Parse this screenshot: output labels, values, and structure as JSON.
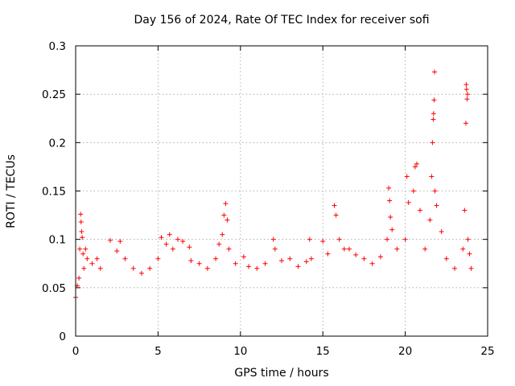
{
  "chart_data": {
    "type": "scatter",
    "title": "Day 156 of 2024, Rate Of TEC Index for receiver sofi",
    "xlabel": "GPS time / hours",
    "ylabel": "ROTI / TECUs",
    "xlim": [
      0,
      25
    ],
    "ylim": [
      0,
      0.3
    ],
    "x_ticks": [
      0,
      5,
      10,
      15,
      20,
      25
    ],
    "x_tick_labels": [
      "0",
      "5",
      "10",
      "15",
      "20",
      "25"
    ],
    "y_ticks": [
      0,
      0.05,
      0.1,
      0.15,
      0.2,
      0.25,
      0.3
    ],
    "y_tick_labels": [
      "0",
      "0.05",
      "0.1",
      "0.15",
      "0.2",
      "0.25",
      "0.3"
    ],
    "grid": true,
    "marker": "+",
    "color": "#ff0000",
    "series": [
      {
        "name": "ROTI",
        "points": [
          [
            0.0,
            0.04
          ],
          [
            0.1,
            0.052
          ],
          [
            0.2,
            0.06
          ],
          [
            0.25,
            0.09
          ],
          [
            0.3,
            0.126
          ],
          [
            0.33,
            0.118
          ],
          [
            0.36,
            0.108
          ],
          [
            0.4,
            0.102
          ],
          [
            0.45,
            0.085
          ],
          [
            0.5,
            0.07
          ],
          [
            0.6,
            0.09
          ],
          [
            0.7,
            0.08
          ],
          [
            1.0,
            0.075
          ],
          [
            1.3,
            0.08
          ],
          [
            1.5,
            0.07
          ],
          [
            2.1,
            0.099
          ],
          [
            2.5,
            0.088
          ],
          [
            2.7,
            0.098
          ],
          [
            3.0,
            0.08
          ],
          [
            3.5,
            0.07
          ],
          [
            4.0,
            0.065
          ],
          [
            4.5,
            0.07
          ],
          [
            5.0,
            0.08
          ],
          [
            5.2,
            0.102
          ],
          [
            5.5,
            0.095
          ],
          [
            5.7,
            0.105
          ],
          [
            5.9,
            0.09
          ],
          [
            6.2,
            0.1
          ],
          [
            6.5,
            0.098
          ],
          [
            6.9,
            0.092
          ],
          [
            7.0,
            0.078
          ],
          [
            7.5,
            0.075
          ],
          [
            8.0,
            0.07
          ],
          [
            8.5,
            0.08
          ],
          [
            8.7,
            0.095
          ],
          [
            8.9,
            0.105
          ],
          [
            9.0,
            0.125
          ],
          [
            9.1,
            0.137
          ],
          [
            9.2,
            0.12
          ],
          [
            9.3,
            0.09
          ],
          [
            9.7,
            0.075
          ],
          [
            10.2,
            0.082
          ],
          [
            10.5,
            0.072
          ],
          [
            11.0,
            0.07
          ],
          [
            11.5,
            0.075
          ],
          [
            12.0,
            0.1
          ],
          [
            12.1,
            0.09
          ],
          [
            12.5,
            0.078
          ],
          [
            13.0,
            0.08
          ],
          [
            13.5,
            0.072
          ],
          [
            14.0,
            0.077
          ],
          [
            14.3,
            0.08
          ],
          [
            14.2,
            0.1
          ],
          [
            15.0,
            0.098
          ],
          [
            15.3,
            0.085
          ],
          [
            15.7,
            0.135
          ],
          [
            15.8,
            0.125
          ],
          [
            16.0,
            0.1
          ],
          [
            16.3,
            0.09
          ],
          [
            16.6,
            0.09
          ],
          [
            17.0,
            0.084
          ],
          [
            17.5,
            0.08
          ],
          [
            18.0,
            0.075
          ],
          [
            18.5,
            0.082
          ],
          [
            18.9,
            0.1
          ],
          [
            19.0,
            0.153
          ],
          [
            19.05,
            0.14
          ],
          [
            19.1,
            0.123
          ],
          [
            19.2,
            0.11
          ],
          [
            19.5,
            0.09
          ],
          [
            20.0,
            0.1
          ],
          [
            20.1,
            0.165
          ],
          [
            20.2,
            0.138
          ],
          [
            20.5,
            0.15
          ],
          [
            20.6,
            0.175
          ],
          [
            20.7,
            0.178
          ],
          [
            20.9,
            0.13
          ],
          [
            21.2,
            0.09
          ],
          [
            21.5,
            0.12
          ],
          [
            21.6,
            0.165
          ],
          [
            21.65,
            0.2
          ],
          [
            21.7,
            0.224
          ],
          [
            21.72,
            0.23
          ],
          [
            21.75,
            0.244
          ],
          [
            21.78,
            0.273
          ],
          [
            21.8,
            0.15
          ],
          [
            21.9,
            0.135
          ],
          [
            22.2,
            0.108
          ],
          [
            22.5,
            0.08
          ],
          [
            23.0,
            0.07
          ],
          [
            23.5,
            0.09
          ],
          [
            23.6,
            0.13
          ],
          [
            23.7,
            0.26
          ],
          [
            23.72,
            0.255
          ],
          [
            23.75,
            0.245
          ],
          [
            23.78,
            0.25
          ],
          [
            23.68,
            0.22
          ],
          [
            23.8,
            0.1
          ],
          [
            23.9,
            0.085
          ],
          [
            24.0,
            0.07
          ]
        ]
      }
    ]
  }
}
